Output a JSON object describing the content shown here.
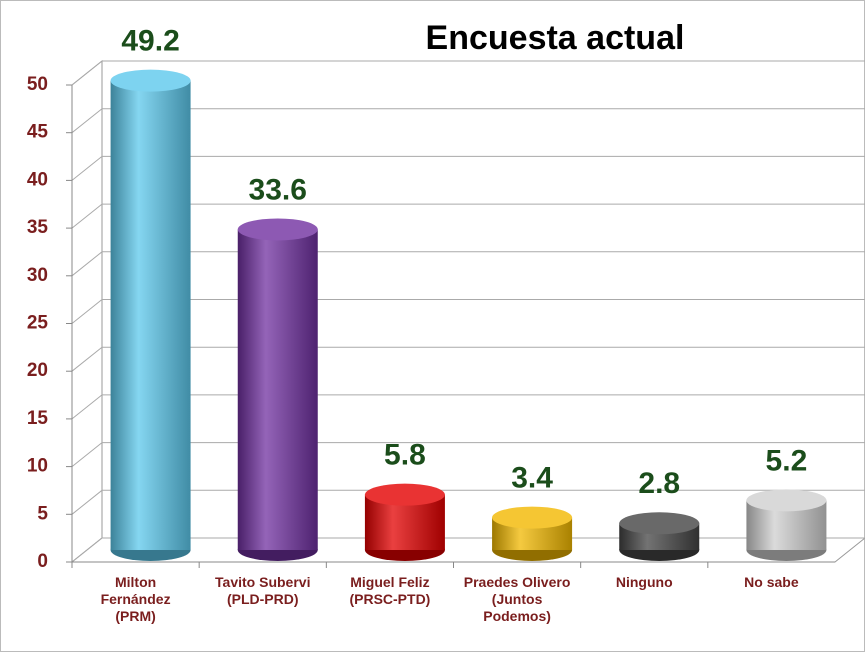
{
  "chart_data": {
    "type": "bar3d",
    "title": "Encuesta actual",
    "categories": [
      "Milton Fernández (PRM)",
      "Tavito Subervi (PLD-PRD)",
      "Miguel Feliz (PRSC-PTD)",
      "Praedes Olivero (Juntos Podemos)",
      "Ninguno",
      "No sabe"
    ],
    "values": [
      49.2,
      33.6,
      5.8,
      3.4,
      2.8,
      5.2
    ],
    "colors": [
      "#5cc8ec",
      "#7030a0",
      "#e30000",
      "#f2b800",
      "#444444",
      "#cfcfcf"
    ],
    "ylim": [
      0,
      50
    ],
    "yticks": [
      0,
      5,
      10,
      15,
      20,
      25,
      30,
      35,
      40,
      45,
      50
    ],
    "grid": true
  }
}
